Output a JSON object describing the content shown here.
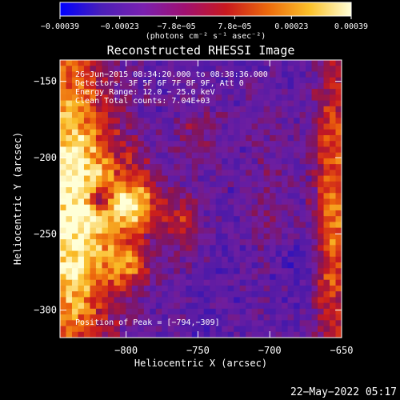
{
  "chart_data": {
    "type": "heatmap",
    "title": "Reconstructed RHESSI Image",
    "xlabel": "Heliocentric X (arcsec)",
    "ylabel": "Heliocentric Y (arcsec)",
    "xlim": [
      -846,
      -650
    ],
    "ylim": [
      -318,
      -136
    ],
    "xticks": [
      {
        "value": -800,
        "label": "−800"
      },
      {
        "value": -750,
        "label": "−750"
      },
      {
        "value": -700,
        "label": "−700"
      },
      {
        "value": -650,
        "label": "−650"
      }
    ],
    "yticks": [
      {
        "value": -150,
        "label": "−150"
      },
      {
        "value": -200,
        "label": "−200"
      },
      {
        "value": -250,
        "label": "−250"
      },
      {
        "value": -300,
        "label": "−300"
      }
    ],
    "colorbar": {
      "range": [
        -0.00039,
        0.00039
      ],
      "ticks": [
        {
          "value": -0.00039,
          "label": "−0.00039"
        },
        {
          "value": -0.00023,
          "label": "−0.00023"
        },
        {
          "value": -7.8e-05,
          "label": "−7.8e−05"
        },
        {
          "value": 7.8e-05,
          "label": "7.8e−05"
        },
        {
          "value": 0.00023,
          "label": "0.00023"
        },
        {
          "value": 0.00039,
          "label": "0.00039"
        }
      ],
      "units": "(photons cm⁻² s⁻¹ asec⁻²)",
      "colors": [
        "#0000ff",
        "#4b1fb8",
        "#7a20b0",
        "#a01070",
        "#c8191e",
        "#ec6a0c",
        "#fbc12a",
        "#ffffd8"
      ]
    },
    "annotations": [
      "26−Jun−2015 08:34:20.000 to 08:38:36.000",
      "Detectors: 3F 5F 6F 7F 8F 9F, Att 0",
      "Energy Range: 12.0 − 25.0 keV",
      "Clean    Total counts: 7.04E+03"
    ],
    "peak_label": "Position of Peak = [−794,−309]",
    "peak": {
      "x": -794,
      "y": -309
    },
    "timestamp": "22−May−2022 05:17"
  }
}
